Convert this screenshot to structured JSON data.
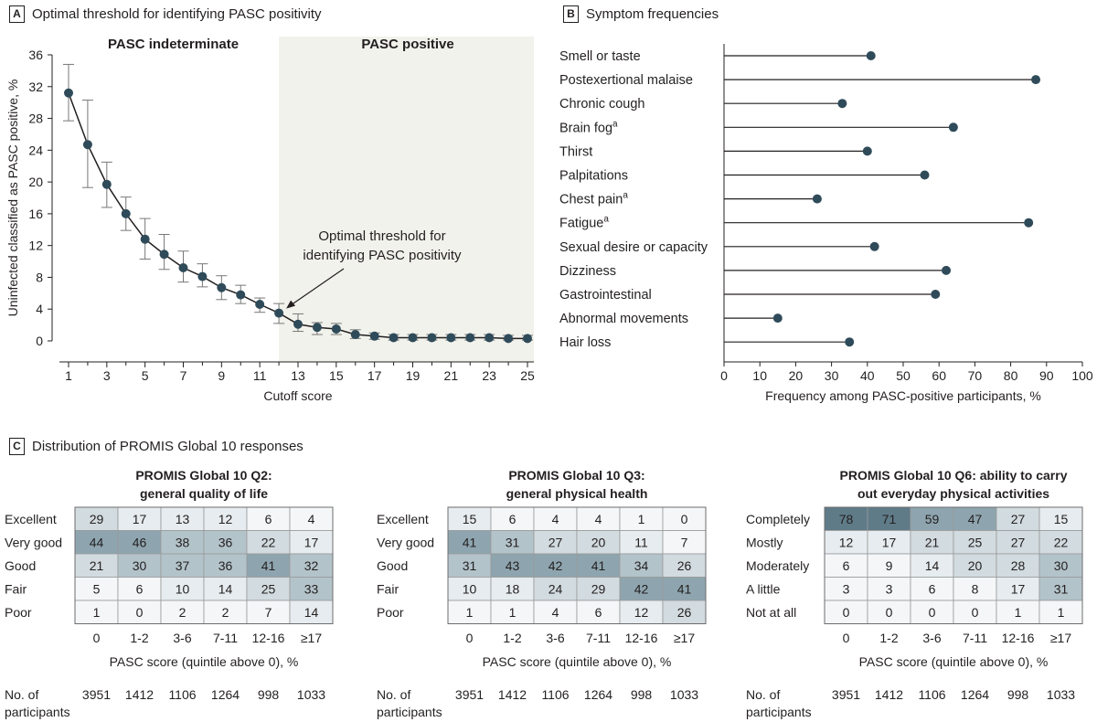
{
  "panels": {
    "a": {
      "letter": "A",
      "title": "Optimal threshold for identifying PASC positivity"
    },
    "b": {
      "letter": "B",
      "title": "Symptom frequencies"
    },
    "c": {
      "letter": "C",
      "title": "Distribution of PROMIS Global 10 responses"
    }
  },
  "colors": {
    "marker": "#2f4b5a",
    "line": "#231f20",
    "shade": "#f2f2ec",
    "heat": [
      "#f4f6f7",
      "#e6ecef",
      "#d2dbdf",
      "#b3c3ca",
      "#8ea5af",
      "#5f7b88"
    ]
  },
  "chart_data": [
    {
      "type": "line",
      "title": "Optimal threshold for identifying PASC positivity",
      "xlabel": "Cutoff score",
      "ylabel": "Uninfected classified as PASC positive, %",
      "xlim": [
        1,
        25
      ],
      "ylim": [
        0,
        36
      ],
      "x_ticks": [
        1,
        3,
        5,
        7,
        9,
        11,
        13,
        15,
        17,
        19,
        21,
        23,
        25
      ],
      "y_ticks": [
        0,
        4,
        8,
        12,
        16,
        20,
        24,
        28,
        32,
        36
      ],
      "regions": [
        {
          "label": "PASC indeterminate",
          "from": 1,
          "to": 12
        },
        {
          "label": "PASC positive",
          "from": 12,
          "to": 25
        }
      ],
      "annotation": {
        "text": [
          "Optimal threshold for",
          "identifying PASC positivity"
        ],
        "x": 12,
        "y": 3.5
      },
      "x": [
        1,
        2,
        3,
        4,
        5,
        6,
        7,
        8,
        9,
        10,
        11,
        12,
        13,
        14,
        15,
        16,
        17,
        18,
        19,
        20,
        21,
        22,
        23,
        24,
        25
      ],
      "y": [
        31.2,
        24.7,
        19.7,
        16.0,
        12.8,
        10.9,
        9.2,
        8.1,
        6.7,
        5.8,
        4.6,
        3.5,
        2.1,
        1.7,
        1.5,
        0.8,
        0.6,
        0.4,
        0.4,
        0.4,
        0.4,
        0.4,
        0.4,
        0.3,
        0.3
      ],
      "err_low": [
        27.7,
        19.3,
        16.8,
        13.9,
        10.3,
        9.0,
        7.4,
        6.8,
        5.2,
        4.7,
        3.6,
        2.2,
        1.2,
        0.8,
        0.8,
        0.3,
        0.2,
        0.1,
        0.1,
        0.1,
        0.1,
        0.1,
        0.1,
        0.1,
        0.1
      ],
      "err_high": [
        34.8,
        30.3,
        22.5,
        18.1,
        15.4,
        13.4,
        11.3,
        9.7,
        8.2,
        7.0,
        5.4,
        4.7,
        3.4,
        2.3,
        2.2,
        1.4,
        1.0,
        0.8,
        0.8,
        0.8,
        0.8,
        0.8,
        0.8,
        0.7,
        0.7
      ],
      "grid": false
    },
    {
      "type": "scatter",
      "title": "Symptom frequencies",
      "xlabel": "Frequency among PASC-positive participants, %",
      "xlim": [
        0,
        100
      ],
      "x_ticks": [
        0,
        10,
        20,
        30,
        40,
        50,
        60,
        70,
        80,
        90,
        100
      ],
      "categories": [
        {
          "label": "Smell or taste",
          "sup": ""
        },
        {
          "label": "Postexertional malaise",
          "sup": ""
        },
        {
          "label": "Chronic cough",
          "sup": ""
        },
        {
          "label": "Brain fog",
          "sup": "a"
        },
        {
          "label": "Thirst",
          "sup": ""
        },
        {
          "label": "Palpitations",
          "sup": ""
        },
        {
          "label": "Chest pain",
          "sup": "a"
        },
        {
          "label": "Fatigue",
          "sup": "a"
        },
        {
          "label": "Sexual desire or capacity",
          "sup": ""
        },
        {
          "label": "Dizziness",
          "sup": ""
        },
        {
          "label": "Gastrointestinal",
          "sup": ""
        },
        {
          "label": "Abnormal movements",
          "sup": ""
        },
        {
          "label": "Hair loss",
          "sup": ""
        }
      ],
      "values": [
        41,
        87,
        33,
        64,
        40,
        56,
        26,
        85,
        42,
        62,
        59,
        15,
        35
      ],
      "grid": false
    },
    {
      "type": "heatmap",
      "title": [
        "PROMIS Global 10 Q2:",
        "general quality of life"
      ],
      "rows": [
        "Excellent",
        "Very good",
        "Good",
        "Fair",
        "Poor"
      ],
      "columns": [
        "0",
        "1-2",
        "3-6",
        "7-11",
        "12-16",
        "≥17"
      ],
      "values": [
        [
          29,
          17,
          13,
          12,
          6,
          4
        ],
        [
          44,
          46,
          38,
          36,
          22,
          17
        ],
        [
          21,
          30,
          37,
          36,
          41,
          32
        ],
        [
          5,
          6,
          10,
          14,
          25,
          33
        ],
        [
          1,
          0,
          2,
          2,
          7,
          14
        ]
      ],
      "xlabel": "PASC score (quintile above 0), %",
      "count_label": [
        "No. of",
        "participants"
      ],
      "counts": [
        "3951",
        "1412",
        "1106",
        "1264",
        "998",
        "1033"
      ]
    },
    {
      "type": "heatmap",
      "title": [
        "PROMIS Global 10 Q3:",
        "general physical health"
      ],
      "rows": [
        "Excellent",
        "Very good",
        "Good",
        "Fair",
        "Poor"
      ],
      "columns": [
        "0",
        "1-2",
        "3-6",
        "7-11",
        "12-16",
        "≥17"
      ],
      "values": [
        [
          15,
          6,
          4,
          4,
          1,
          0
        ],
        [
          41,
          31,
          27,
          20,
          11,
          7
        ],
        [
          31,
          43,
          42,
          41,
          34,
          26
        ],
        [
          10,
          18,
          24,
          29,
          42,
          41
        ],
        [
          1,
          1,
          4,
          6,
          12,
          26
        ]
      ],
      "xlabel": "PASC score (quintile above 0), %",
      "count_label": [
        "No. of",
        "participants"
      ],
      "counts": [
        "3951",
        "1412",
        "1106",
        "1264",
        "998",
        "1033"
      ]
    },
    {
      "type": "heatmap",
      "title": [
        "PROMIS Global 10 Q6: ability to carry",
        "out everyday physical activities"
      ],
      "rows": [
        "Completely",
        "Mostly",
        "Moderately",
        "A little",
        "Not at all"
      ],
      "columns": [
        "0",
        "1-2",
        "3-6",
        "7-11",
        "12-16",
        "≥17"
      ],
      "values": [
        [
          78,
          71,
          59,
          47,
          27,
          15
        ],
        [
          12,
          17,
          21,
          25,
          27,
          22
        ],
        [
          6,
          9,
          14,
          20,
          28,
          30
        ],
        [
          3,
          3,
          6,
          8,
          17,
          31
        ],
        [
          0,
          0,
          0,
          0,
          1,
          1
        ]
      ],
      "xlabel": "PASC score (quintile above 0), %",
      "count_label": [
        "No. of",
        "participants"
      ],
      "counts": [
        "3951",
        "1412",
        "1106",
        "1264",
        "998",
        "1033"
      ]
    }
  ]
}
